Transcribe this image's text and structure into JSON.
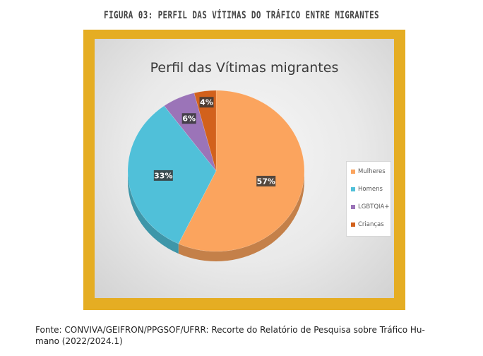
{
  "figure": {
    "caption": "FIGURA 03: PERFIL DAS VÍTIMAS DO TRÁFICO ENTRE MIGRANTES",
    "source_line1": "Fonte: CONVIVA/GEIFRON/PPGSOF/UFRR: Recorte do Relatório de Pesquisa sobre Tráfico Hu-",
    "source_line2": "mano (2022/2024.1)",
    "frame_color": "#e5ad23"
  },
  "chart_data": {
    "type": "pie",
    "style": "3d",
    "title": "Perfil das Vítimas migrantes",
    "legend_position": "right",
    "categories": [
      "Mulheres",
      "Homens",
      "LGBTQIA+",
      "Crianças"
    ],
    "values": [
      57,
      33,
      6,
      4
    ],
    "labels": [
      "57%",
      "33%",
      "6%",
      "4%"
    ],
    "colors": [
      "#fba45e",
      "#50c0d9",
      "#9b74b8",
      "#d2611c"
    ]
  }
}
